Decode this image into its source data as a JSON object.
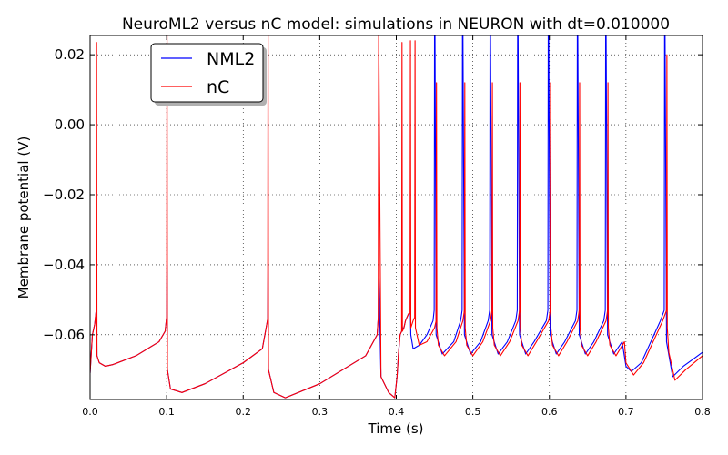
{
  "chart_data": {
    "type": "line",
    "title": "NeuroML2 versus nC model: simulations in NEURON with dt=0.010000",
    "xlabel": "Time (s)",
    "ylabel": "Membrane potential (V)",
    "xlim": [
      0.0,
      0.8
    ],
    "ylim": [
      -0.0785,
      0.0255
    ],
    "xticks": [
      "0.0",
      "0.1",
      "0.2",
      "0.3",
      "0.4",
      "0.5",
      "0.6",
      "0.7",
      "0.8"
    ],
    "xtick_values": [
      0.0,
      0.1,
      0.2,
      0.3,
      0.4,
      0.5,
      0.6,
      0.7,
      0.8
    ],
    "yticks": [
      "0.02",
      "0.00",
      "−0.02",
      "−0.04",
      "−0.06"
    ],
    "ytick_values": [
      0.02,
      0.0,
      -0.02,
      -0.04,
      -0.06
    ],
    "grid": true,
    "legend_position": "top-left",
    "series": [
      {
        "name": "NML2",
        "color": "#0000ff",
        "x": [
          0.0,
          0.003,
          0.006,
          0.008,
          0.0085,
          0.009,
          0.012,
          0.02,
          0.03,
          0.06,
          0.09,
          0.098,
          0.1,
          0.1005,
          0.101,
          0.105,
          0.12,
          0.15,
          0.2,
          0.225,
          0.232,
          0.2325,
          0.233,
          0.24,
          0.255,
          0.3,
          0.36,
          0.375,
          0.3765,
          0.377,
          0.38,
          0.39,
          0.398,
          0.401,
          0.403,
          0.405,
          0.407,
          0.4075,
          0.408,
          0.41,
          0.412,
          0.416,
          0.418,
          0.4185,
          0.419,
          0.422,
          0.43,
          0.44,
          0.448,
          0.4495,
          0.45,
          0.4505,
          0.452,
          0.46,
          0.475,
          0.484,
          0.486,
          0.4865,
          0.487,
          0.489,
          0.497,
          0.51,
          0.52,
          0.522,
          0.5225,
          0.523,
          0.525,
          0.533,
          0.545,
          0.556,
          0.558,
          0.5585,
          0.559,
          0.561,
          0.569,
          0.58,
          0.596,
          0.598,
          0.5985,
          0.599,
          0.601,
          0.609,
          0.62,
          0.634,
          0.636,
          0.6365,
          0.637,
          0.639,
          0.647,
          0.658,
          0.671,
          0.673,
          0.6735,
          0.674,
          0.676,
          0.684,
          0.695,
          0.7,
          0.707,
          0.72,
          0.745,
          0.75,
          0.7505,
          0.751,
          0.753,
          0.761,
          0.775,
          0.8
        ],
        "y": [
          -0.071,
          -0.06,
          -0.057,
          -0.053,
          -0.053,
          -0.066,
          -0.068,
          -0.069,
          -0.0685,
          -0.066,
          -0.062,
          -0.059,
          -0.055,
          -0.04,
          -0.07,
          -0.0755,
          -0.0765,
          -0.074,
          -0.068,
          -0.064,
          -0.0555,
          -0.04,
          -0.07,
          -0.0765,
          -0.078,
          -0.074,
          -0.066,
          -0.06,
          -0.055,
          -0.04,
          -0.072,
          -0.0765,
          -0.078,
          -0.072,
          -0.065,
          -0.06,
          -0.059,
          -0.059,
          -0.058,
          -0.058,
          -0.056,
          -0.054,
          -0.054,
          -0.054,
          -0.06,
          -0.064,
          -0.063,
          -0.06,
          -0.056,
          -0.053,
          0.03,
          0.03,
          -0.06,
          -0.0655,
          -0.062,
          -0.056,
          -0.053,
          0.03,
          0.03,
          -0.06,
          -0.0655,
          -0.062,
          -0.056,
          -0.053,
          0.03,
          0.03,
          -0.06,
          -0.0655,
          -0.062,
          -0.056,
          -0.053,
          0.03,
          0.03,
          -0.06,
          -0.0655,
          -0.062,
          -0.056,
          -0.053,
          0.03,
          0.03,
          -0.06,
          -0.0655,
          -0.062,
          -0.056,
          -0.053,
          0.03,
          0.03,
          -0.06,
          -0.0655,
          -0.062,
          -0.056,
          -0.053,
          0.03,
          0.03,
          -0.06,
          -0.0655,
          -0.062,
          -0.069,
          -0.0705,
          -0.068,
          -0.056,
          -0.053,
          0.03,
          0.03,
          -0.062,
          -0.072,
          -0.069,
          -0.065
        ]
      },
      {
        "name": "nC",
        "color": "#ff0000",
        "x": [
          0.0,
          0.003,
          0.006,
          0.008,
          0.0085,
          0.009,
          0.012,
          0.02,
          0.03,
          0.06,
          0.09,
          0.098,
          0.1,
          0.1005,
          0.101,
          0.105,
          0.12,
          0.15,
          0.2,
          0.225,
          0.232,
          0.2325,
          0.233,
          0.24,
          0.255,
          0.3,
          0.36,
          0.375,
          0.3765,
          0.377,
          0.38,
          0.39,
          0.398,
          0.401,
          0.403,
          0.405,
          0.407,
          0.4075,
          0.408,
          0.41,
          0.412,
          0.416,
          0.418,
          0.4185,
          0.419,
          0.422,
          0.424,
          0.4245,
          0.425,
          0.43,
          0.44,
          0.45,
          0.452,
          0.4525,
          0.453,
          0.455,
          0.463,
          0.478,
          0.487,
          0.489,
          0.4895,
          0.49,
          0.492,
          0.5,
          0.513,
          0.523,
          0.525,
          0.5255,
          0.526,
          0.528,
          0.536,
          0.548,
          0.559,
          0.561,
          0.5615,
          0.562,
          0.564,
          0.572,
          0.583,
          0.599,
          0.601,
          0.6015,
          0.602,
          0.604,
          0.612,
          0.623,
          0.637,
          0.639,
          0.6395,
          0.64,
          0.642,
          0.65,
          0.661,
          0.674,
          0.676,
          0.6765,
          0.677,
          0.679,
          0.687,
          0.698,
          0.7,
          0.71,
          0.723,
          0.748,
          0.753,
          0.7535,
          0.754,
          0.756,
          0.764,
          0.778,
          0.8
        ],
        "y": [
          -0.071,
          -0.06,
          -0.057,
          -0.053,
          0.0235,
          -0.066,
          -0.068,
          -0.069,
          -0.0685,
          -0.066,
          -0.062,
          -0.059,
          -0.055,
          0.03,
          -0.07,
          -0.0755,
          -0.0765,
          -0.074,
          -0.068,
          -0.064,
          -0.0555,
          0.03,
          -0.07,
          -0.0765,
          -0.078,
          -0.074,
          -0.066,
          -0.06,
          -0.055,
          0.03,
          -0.072,
          -0.0765,
          -0.078,
          -0.072,
          -0.065,
          -0.06,
          -0.059,
          0.0235,
          -0.059,
          -0.058,
          -0.056,
          -0.054,
          -0.054,
          0.024,
          -0.058,
          -0.056,
          -0.055,
          0.024,
          -0.058,
          -0.063,
          -0.062,
          -0.058,
          -0.056,
          0.012,
          -0.058,
          -0.063,
          -0.066,
          -0.062,
          -0.056,
          -0.053,
          0.012,
          -0.058,
          -0.063,
          -0.066,
          -0.062,
          -0.056,
          -0.053,
          0.012,
          -0.058,
          -0.063,
          -0.066,
          -0.062,
          -0.056,
          -0.053,
          0.012,
          -0.058,
          -0.063,
          -0.066,
          -0.062,
          -0.056,
          -0.053,
          0.012,
          -0.058,
          -0.063,
          -0.066,
          -0.062,
          -0.056,
          -0.053,
          0.012,
          -0.058,
          -0.063,
          -0.066,
          -0.062,
          -0.056,
          -0.053,
          0.012,
          -0.058,
          -0.063,
          -0.066,
          -0.062,
          -0.068,
          -0.0715,
          -0.068,
          -0.056,
          -0.053,
          0.02,
          -0.058,
          -0.065,
          -0.073,
          -0.07,
          -0.066
        ]
      }
    ]
  }
}
